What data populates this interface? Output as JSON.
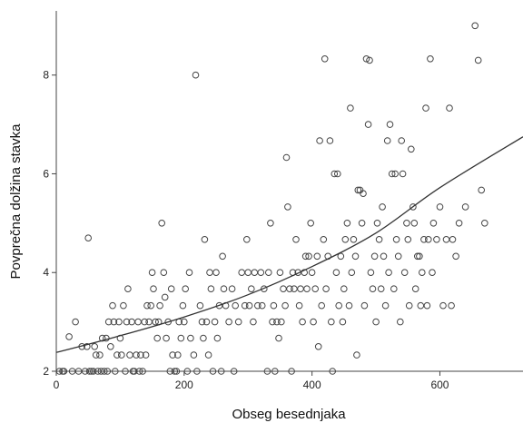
{
  "chart_data": {
    "type": "scatter",
    "title": "",
    "xlabel": "Obseg besednjaka",
    "ylabel": "Povprečna dolžina stavka",
    "xlim": [
      0,
      730
    ],
    "ylim": [
      2,
      9.3
    ],
    "x_ticks": [
      0,
      200,
      400,
      600
    ],
    "y_ticks": [
      2,
      4,
      6,
      8
    ],
    "x_tick_labels": [
      "0",
      "200",
      "400",
      "600"
    ],
    "y_tick_labels": [
      "2",
      "4",
      "6",
      "8"
    ],
    "grid": false,
    "legend": "none",
    "colors": {
      "points": "#444444",
      "fit_line": "#333333",
      "axis": "#444444"
    },
    "fit_line": {
      "type": "exponential",
      "points": [
        [
          0,
          2.38
        ],
        [
          100,
          2.72
        ],
        [
          200,
          3.1
        ],
        [
          300,
          3.55
        ],
        [
          400,
          4.12
        ],
        [
          500,
          4.8
        ],
        [
          600,
          5.72
        ],
        [
          730,
          6.75
        ]
      ]
    },
    "points": [
      [
        5,
        2
      ],
      [
        10,
        2
      ],
      [
        12,
        2
      ],
      [
        20,
        2.7
      ],
      [
        25,
        2
      ],
      [
        30,
        3
      ],
      [
        35,
        2
      ],
      [
        40,
        2.5
      ],
      [
        45,
        2
      ],
      [
        48,
        2.5
      ],
      [
        50,
        4.7
      ],
      [
        52,
        2
      ],
      [
        55,
        2
      ],
      [
        58,
        2
      ],
      [
        60,
        2.5
      ],
      [
        62,
        2.33
      ],
      [
        65,
        2
      ],
      [
        68,
        2.33
      ],
      [
        70,
        2
      ],
      [
        72,
        2.67
      ],
      [
        75,
        2
      ],
      [
        78,
        2.67
      ],
      [
        80,
        2
      ],
      [
        82,
        3
      ],
      [
        85,
        2.5
      ],
      [
        88,
        3.33
      ],
      [
        90,
        3
      ],
      [
        92,
        2
      ],
      [
        95,
        2.33
      ],
      [
        98,
        3
      ],
      [
        100,
        2.67
      ],
      [
        102,
        2.33
      ],
      [
        105,
        3.33
      ],
      [
        108,
        2
      ],
      [
        110,
        3
      ],
      [
        112,
        3.67
      ],
      [
        115,
        2.33
      ],
      [
        118,
        3
      ],
      [
        120,
        2
      ],
      [
        122,
        2
      ],
      [
        125,
        2.33
      ],
      [
        128,
        3
      ],
      [
        130,
        2
      ],
      [
        132,
        2.33
      ],
      [
        135,
        2
      ],
      [
        138,
        3
      ],
      [
        140,
        2.33
      ],
      [
        142,
        3.33
      ],
      [
        145,
        3
      ],
      [
        148,
        3.33
      ],
      [
        150,
        4
      ],
      [
        152,
        3.67
      ],
      [
        155,
        3
      ],
      [
        158,
        2.67
      ],
      [
        160,
        3
      ],
      [
        162,
        3.33
      ],
      [
        165,
        5
      ],
      [
        168,
        4
      ],
      [
        170,
        3.5
      ],
      [
        172,
        2.67
      ],
      [
        175,
        3
      ],
      [
        178,
        2
      ],
      [
        180,
        3.67
      ],
      [
        182,
        2.33
      ],
      [
        185,
        2
      ],
      [
        188,
        2
      ],
      [
        190,
        2.33
      ],
      [
        192,
        3
      ],
      [
        195,
        2.67
      ],
      [
        198,
        3.33
      ],
      [
        200,
        3
      ],
      [
        202,
        3.67
      ],
      [
        205,
        2
      ],
      [
        208,
        4
      ],
      [
        210,
        2.67
      ],
      [
        215,
        2.33
      ],
      [
        218,
        8
      ],
      [
        220,
        2
      ],
      [
        225,
        3.33
      ],
      [
        228,
        3
      ],
      [
        230,
        2.67
      ],
      [
        232,
        4.67
      ],
      [
        235,
        3
      ],
      [
        238,
        2.33
      ],
      [
        240,
        4
      ],
      [
        242,
        3.67
      ],
      [
        245,
        2
      ],
      [
        248,
        3
      ],
      [
        250,
        4
      ],
      [
        252,
        2.67
      ],
      [
        255,
        3.33
      ],
      [
        258,
        2
      ],
      [
        260,
        4.33
      ],
      [
        262,
        3.67
      ],
      [
        265,
        3.33
      ],
      [
        270,
        3
      ],
      [
        275,
        3.67
      ],
      [
        278,
        2
      ],
      [
        280,
        3.33
      ],
      [
        285,
        3
      ],
      [
        290,
        4
      ],
      [
        295,
        3.33
      ],
      [
        298,
        4.67
      ],
      [
        300,
        4
      ],
      [
        302,
        3.33
      ],
      [
        305,
        3.67
      ],
      [
        308,
        3
      ],
      [
        310,
        4
      ],
      [
        315,
        3.33
      ],
      [
        320,
        4
      ],
      [
        322,
        3.33
      ],
      [
        325,
        3.67
      ],
      [
        330,
        2
      ],
      [
        332,
        4
      ],
      [
        335,
        5
      ],
      [
        338,
        3
      ],
      [
        340,
        3.33
      ],
      [
        342,
        2
      ],
      [
        345,
        3
      ],
      [
        348,
        2.67
      ],
      [
        350,
        4
      ],
      [
        352,
        3
      ],
      [
        355,
        3.67
      ],
      [
        358,
        3.33
      ],
      [
        360,
        6.33
      ],
      [
        362,
        5.33
      ],
      [
        365,
        3.67
      ],
      [
        368,
        2
      ],
      [
        370,
        4
      ],
      [
        372,
        3.67
      ],
      [
        375,
        4.67
      ],
      [
        378,
        4
      ],
      [
        380,
        3.33
      ],
      [
        382,
        3.67
      ],
      [
        385,
        3
      ],
      [
        388,
        4
      ],
      [
        390,
        4.33
      ],
      [
        392,
        3.67
      ],
      [
        395,
        4.33
      ],
      [
        398,
        5
      ],
      [
        400,
        4
      ],
      [
        402,
        3
      ],
      [
        405,
        3.67
      ],
      [
        408,
        4.33
      ],
      [
        410,
        2.5
      ],
      [
        412,
        6.67
      ],
      [
        415,
        3.33
      ],
      [
        418,
        4.67
      ],
      [
        420,
        8.33
      ],
      [
        422,
        3.67
      ],
      [
        425,
        4.33
      ],
      [
        428,
        6.67
      ],
      [
        430,
        3
      ],
      [
        432,
        2
      ],
      [
        435,
        6
      ],
      [
        438,
        4
      ],
      [
        440,
        6
      ],
      [
        442,
        3.33
      ],
      [
        445,
        4.33
      ],
      [
        448,
        3
      ],
      [
        450,
        3.67
      ],
      [
        452,
        4.67
      ],
      [
        455,
        5
      ],
      [
        458,
        3.33
      ],
      [
        460,
        7.33
      ],
      [
        462,
        4
      ],
      [
        465,
        4.67
      ],
      [
        468,
        4.33
      ],
      [
        470,
        2.33
      ],
      [
        472,
        5.67
      ],
      [
        475,
        5.67
      ],
      [
        478,
        5
      ],
      [
        480,
        5.6
      ],
      [
        482,
        3.33
      ],
      [
        485,
        8.33
      ],
      [
        488,
        7
      ],
      [
        490,
        8.3
      ],
      [
        492,
        4
      ],
      [
        495,
        3.67
      ],
      [
        498,
        4.33
      ],
      [
        500,
        3
      ],
      [
        502,
        5
      ],
      [
        505,
        4.67
      ],
      [
        508,
        3.67
      ],
      [
        510,
        5.33
      ],
      [
        512,
        4.33
      ],
      [
        515,
        3.33
      ],
      [
        518,
        6.67
      ],
      [
        520,
        4
      ],
      [
        522,
        7
      ],
      [
        525,
        6
      ],
      [
        528,
        3.67
      ],
      [
        530,
        6
      ],
      [
        532,
        4.67
      ],
      [
        535,
        4.33
      ],
      [
        538,
        3
      ],
      [
        540,
        6.67
      ],
      [
        542,
        6
      ],
      [
        545,
        4
      ],
      [
        548,
        5
      ],
      [
        550,
        4.67
      ],
      [
        552,
        3.33
      ],
      [
        555,
        6.5
      ],
      [
        558,
        5.33
      ],
      [
        560,
        5
      ],
      [
        562,
        3.67
      ],
      [
        565,
        4.33
      ],
      [
        568,
        4.33
      ],
      [
        570,
        3.33
      ],
      [
        572,
        4
      ],
      [
        575,
        4.67
      ],
      [
        578,
        7.33
      ],
      [
        580,
        3.33
      ],
      [
        582,
        4.67
      ],
      [
        585,
        8.33
      ],
      [
        588,
        4
      ],
      [
        590,
        5
      ],
      [
        595,
        4.67
      ],
      [
        600,
        5.33
      ],
      [
        605,
        3.33
      ],
      [
        610,
        4.67
      ],
      [
        615,
        7.33
      ],
      [
        618,
        3.33
      ],
      [
        620,
        4.67
      ],
      [
        625,
        4.33
      ],
      [
        630,
        5
      ],
      [
        640,
        5.33
      ],
      [
        655,
        9
      ],
      [
        660,
        8.3
      ],
      [
        665,
        5.67
      ],
      [
        670,
        5
      ]
    ]
  }
}
